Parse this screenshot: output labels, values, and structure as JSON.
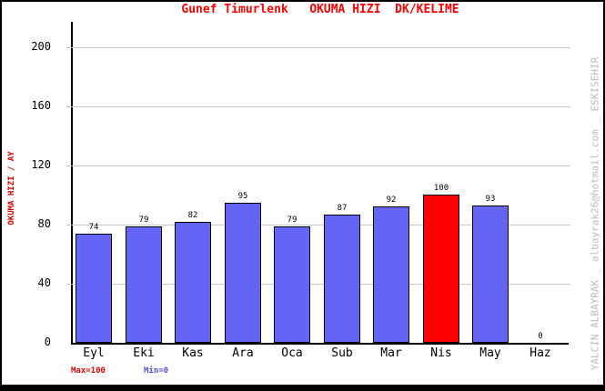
{
  "window_title": "Gunef Timurlenk   OKUMA HIZI  DK/KELIME",
  "watermark": "YALCIN ALBAYRAK _ albayrak26@hotmail.com _ ESKISEHIR",
  "legend": {
    "max": "Max=100",
    "min": "Min=0"
  },
  "chart_data": {
    "type": "bar",
    "title": "Gunef Timurlenk   OKUMA HIZI  DK/KELIME",
    "ylabel": "OKUMA HIZI / AY",
    "xlabel": "",
    "categories": [
      "Eyl",
      "Eki",
      "Kas",
      "Ara",
      "Oca",
      "Sub",
      "Mar",
      "Nis",
      "May",
      "Haz"
    ],
    "values": [
      74,
      79,
      82,
      95,
      79,
      87,
      92,
      100,
      93,
      0
    ],
    "highlight_index": 7,
    "yticks": [
      0,
      40,
      80,
      120,
      160,
      200
    ],
    "ylim": [
      0,
      217
    ],
    "grid": true,
    "legend_position": "bottom-left",
    "annotations": {
      "max": "Max=100",
      "min": "Min=0"
    }
  },
  "colors": {
    "title": "#FF0000",
    "ylabel": "#DD0000",
    "bar": "#6565F5",
    "bar_highlight": "#FF0000",
    "bar_border": "#000000",
    "grid": "#C8C8C8",
    "axis": "#000000",
    "value_label": "#000000",
    "tick_label": "#000000",
    "max_text": "#DD0000",
    "min_text": "#5050DD",
    "watermark": "#BBBBBB",
    "frame": "#000000"
  }
}
